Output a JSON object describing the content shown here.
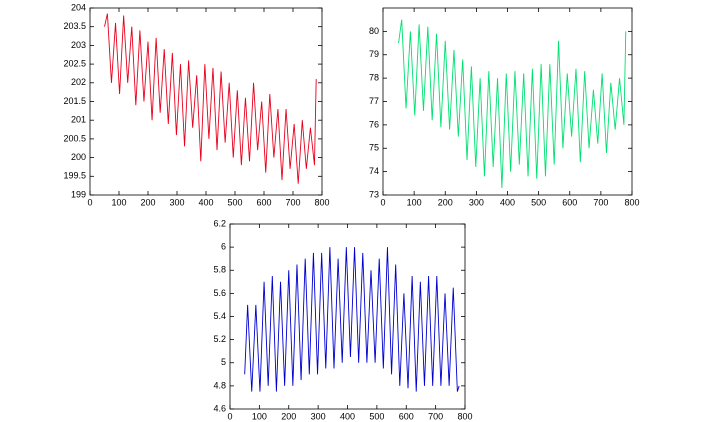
{
  "chart_data": [
    {
      "type": "line",
      "xlim": [
        0,
        800
      ],
      "xticks": [
        0,
        100,
        200,
        300,
        400,
        500,
        600,
        700,
        800
      ],
      "ylim": [
        199,
        204
      ],
      "yticks": [
        199,
        199.5,
        200,
        200.5,
        201,
        201.5,
        202,
        202.5,
        203,
        203.5,
        204
      ],
      "x": [
        50,
        60,
        74,
        88,
        102,
        116,
        130,
        144,
        158,
        172,
        186,
        200,
        214,
        228,
        242,
        256,
        270,
        284,
        298,
        312,
        326,
        340,
        354,
        368,
        382,
        396,
        410,
        424,
        438,
        452,
        466,
        480,
        494,
        508,
        522,
        536,
        550,
        564,
        578,
        592,
        606,
        620,
        634,
        648,
        662,
        676,
        690,
        704,
        718,
        732,
        746,
        760,
        774,
        780
      ],
      "series": [
        {
          "color": "#e8001c",
          "values": [
            203.5,
            203.85,
            202.0,
            203.6,
            201.7,
            203.8,
            202,
            203.5,
            201.4,
            203.4,
            201.5,
            203.1,
            201,
            203.2,
            201.2,
            202.9,
            200.9,
            202.8,
            200.6,
            202.5,
            200.3,
            202.6,
            200.8,
            202.2,
            199.9,
            202.5,
            200.5,
            202.4,
            200.2,
            202.3,
            200.4,
            202,
            200,
            201.8,
            199.8,
            201.6,
            199.9,
            202,
            200.2,
            201.5,
            199.6,
            201.7,
            200,
            201.3,
            199.4,
            201.3,
            199.7,
            200.9,
            199.3,
            201,
            199.7,
            200.8,
            199.8,
            202.1
          ]
        }
      ]
    },
    {
      "type": "line",
      "xlim": [
        0,
        800
      ],
      "xticks": [
        0,
        100,
        200,
        300,
        400,
        500,
        600,
        700,
        800
      ],
      "ylim": [
        73,
        81
      ],
      "yticks": [
        73,
        74,
        75,
        76,
        77,
        78,
        79,
        80
      ],
      "x": [
        50,
        60,
        74,
        88,
        102,
        116,
        130,
        144,
        158,
        172,
        186,
        200,
        214,
        228,
        242,
        256,
        270,
        284,
        298,
        312,
        326,
        340,
        354,
        368,
        382,
        396,
        410,
        424,
        438,
        452,
        466,
        480,
        494,
        508,
        522,
        536,
        550,
        564,
        578,
        592,
        606,
        620,
        634,
        648,
        662,
        676,
        690,
        704,
        718,
        732,
        746,
        760,
        774,
        780
      ],
      "series": [
        {
          "color": "#00e070",
          "values": [
            79.5,
            80.5,
            76.7,
            80,
            76.4,
            80.3,
            76.6,
            80.2,
            76.2,
            79.9,
            75.9,
            79.6,
            75.8,
            79.2,
            75.5,
            78.8,
            74.5,
            78.5,
            74.2,
            78,
            73.8,
            78.3,
            74.2,
            78,
            73.3,
            78.2,
            74,
            78.3,
            74.3,
            78.2,
            73.8,
            78.4,
            73.7,
            78.6,
            73.8,
            78.6,
            74.3,
            79.6,
            75,
            78.2,
            75.5,
            78.4,
            74.4,
            78.3,
            75,
            77.5,
            75.2,
            78.2,
            74.8,
            77.8,
            75.8,
            78,
            76,
            80
          ]
        }
      ]
    },
    {
      "type": "line",
      "xlim": [
        0,
        800
      ],
      "xticks": [
        0,
        100,
        200,
        300,
        400,
        500,
        600,
        700,
        800
      ],
      "ylim": [
        4.6,
        6.2
      ],
      "yticks": [
        4.6,
        4.8,
        5,
        5.2,
        5.4,
        5.6,
        5.8,
        6,
        6.2
      ],
      "x": [
        50,
        60,
        74,
        88,
        102,
        116,
        130,
        144,
        158,
        172,
        186,
        200,
        214,
        228,
        242,
        256,
        270,
        284,
        298,
        312,
        326,
        340,
        354,
        368,
        382,
        396,
        410,
        424,
        438,
        452,
        466,
        480,
        494,
        508,
        522,
        536,
        550,
        564,
        578,
        592,
        606,
        620,
        634,
        648,
        662,
        676,
        690,
        704,
        718,
        732,
        746,
        760,
        774,
        780
      ],
      "series": [
        {
          "color": "#0000d0",
          "values": [
            4.9,
            5.5,
            4.75,
            5.5,
            4.75,
            5.7,
            4.8,
            5.75,
            4.75,
            5.7,
            4.8,
            5.8,
            4.8,
            5.85,
            4.85,
            5.9,
            4.9,
            5.95,
            4.9,
            5.95,
            4.95,
            6,
            4.95,
            5.9,
            5,
            6,
            5.05,
            6,
            5,
            5.95,
            5,
            5.8,
            5,
            5.9,
            4.95,
            6,
            4.9,
            5.85,
            4.8,
            5.6,
            4.78,
            5.75,
            4.75,
            5.7,
            4.8,
            5.75,
            4.8,
            5.75,
            4.8,
            5.6,
            4.8,
            5.65,
            4.75,
            4.8
          ]
        }
      ]
    }
  ]
}
